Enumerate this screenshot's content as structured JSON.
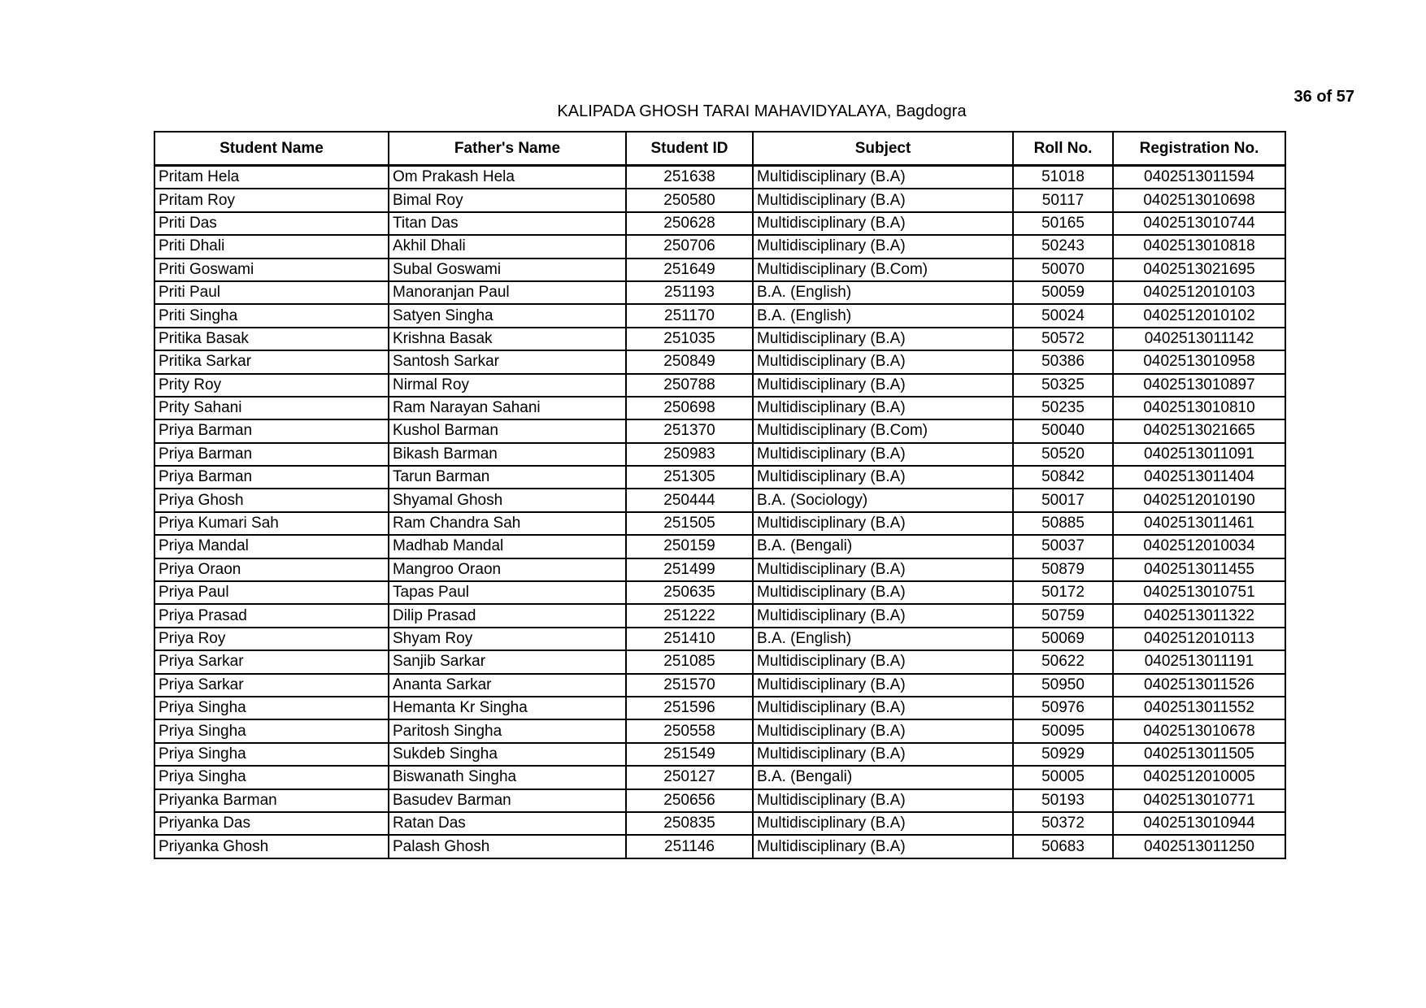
{
  "page_number": "36 of 57",
  "title": "KALIPADA GHOSH TARAI MAHAVIDYALAYA, Bagdogra",
  "columns": [
    "Student Name",
    "Father's Name",
    "Student ID",
    "Subject",
    "Roll No.",
    "Registration No."
  ],
  "rows": [
    [
      "Pritam Hela",
      "Om Prakash Hela",
      "251638",
      "Multidisciplinary (B.A)",
      "51018",
      "0402513011594"
    ],
    [
      "Pritam Roy",
      "Bimal Roy",
      "250580",
      "Multidisciplinary (B.A)",
      "50117",
      "0402513010698"
    ],
    [
      "Priti Das",
      "Titan Das",
      "250628",
      "Multidisciplinary (B.A)",
      "50165",
      "0402513010744"
    ],
    [
      "Priti Dhali",
      "Akhil Dhali",
      "250706",
      "Multidisciplinary (B.A)",
      "50243",
      "0402513010818"
    ],
    [
      "Priti Goswami",
      "Subal Goswami",
      "251649",
      "Multidisciplinary (B.Com)",
      "50070",
      "0402513021695"
    ],
    [
      "Priti Paul",
      "Manoranjan Paul",
      "251193",
      "B.A. (English)",
      "50059",
      "0402512010103"
    ],
    [
      "Priti Singha",
      "Satyen Singha",
      "251170",
      "B.A. (English)",
      "50024",
      "0402512010102"
    ],
    [
      "Pritika Basak",
      "Krishna Basak",
      "251035",
      "Multidisciplinary (B.A)",
      "50572",
      "0402513011142"
    ],
    [
      "Pritika Sarkar",
      "Santosh Sarkar",
      "250849",
      "Multidisciplinary (B.A)",
      "50386",
      "0402513010958"
    ],
    [
      "Prity Roy",
      "Nirmal Roy",
      "250788",
      "Multidisciplinary (B.A)",
      "50325",
      "0402513010897"
    ],
    [
      "Prity Sahani",
      "Ram Narayan Sahani",
      "250698",
      "Multidisciplinary (B.A)",
      "50235",
      "0402513010810"
    ],
    [
      "Priya Barman",
      "Kushol Barman",
      "251370",
      "Multidisciplinary (B.Com)",
      "50040",
      "0402513021665"
    ],
    [
      "Priya Barman",
      "Bikash Barman",
      "250983",
      "Multidisciplinary (B.A)",
      "50520",
      "0402513011091"
    ],
    [
      "Priya Barman",
      "Tarun Barman",
      "251305",
      "Multidisciplinary (B.A)",
      "50842",
      "0402513011404"
    ],
    [
      "Priya Ghosh",
      "Shyamal Ghosh",
      "250444",
      "B.A. (Sociology)",
      "50017",
      "0402512010190"
    ],
    [
      "Priya Kumari Sah",
      "Ram Chandra Sah",
      "251505",
      "Multidisciplinary (B.A)",
      "50885",
      "0402513011461"
    ],
    [
      "Priya Mandal",
      "Madhab Mandal",
      "250159",
      "B.A. (Bengali)",
      "50037",
      "0402512010034"
    ],
    [
      "Priya Oraon",
      "Mangroo Oraon",
      "251499",
      "Multidisciplinary (B.A)",
      "50879",
      "0402513011455"
    ],
    [
      "Priya Paul",
      "Tapas Paul",
      "250635",
      "Multidisciplinary (B.A)",
      "50172",
      "0402513010751"
    ],
    [
      "Priya Prasad",
      "Dilip Prasad",
      "251222",
      "Multidisciplinary (B.A)",
      "50759",
      "0402513011322"
    ],
    [
      "Priya Roy",
      "Shyam Roy",
      "251410",
      "B.A. (English)",
      "50069",
      "0402512010113"
    ],
    [
      "Priya Sarkar",
      "Sanjib Sarkar",
      "251085",
      "Multidisciplinary (B.A)",
      "50622",
      "0402513011191"
    ],
    [
      "Priya Sarkar",
      "Ananta Sarkar",
      "251570",
      "Multidisciplinary (B.A)",
      "50950",
      "0402513011526"
    ],
    [
      "Priya Singha",
      "Hemanta Kr Singha",
      "251596",
      "Multidisciplinary (B.A)",
      "50976",
      "0402513011552"
    ],
    [
      "Priya Singha",
      "Paritosh Singha",
      "250558",
      "Multidisciplinary (B.A)",
      "50095",
      "0402513010678"
    ],
    [
      "Priya Singha",
      "Sukdeb Singha",
      "251549",
      "Multidisciplinary (B.A)",
      "50929",
      "0402513011505"
    ],
    [
      "Priya Singha",
      "Biswanath Singha",
      "250127",
      "B.A. (Bengali)",
      "50005",
      "0402512010005"
    ],
    [
      "Priyanka Barman",
      "Basudev Barman",
      "250656",
      "Multidisciplinary (B.A)",
      "50193",
      "0402513010771"
    ],
    [
      "Priyanka Das",
      "Ratan Das",
      "250835",
      "Multidisciplinary (B.A)",
      "50372",
      "0402513010944"
    ],
    [
      "Priyanka Ghosh",
      "Palash Ghosh",
      "251146",
      "Multidisciplinary (B.A)",
      "50683",
      "0402513011250"
    ]
  ]
}
